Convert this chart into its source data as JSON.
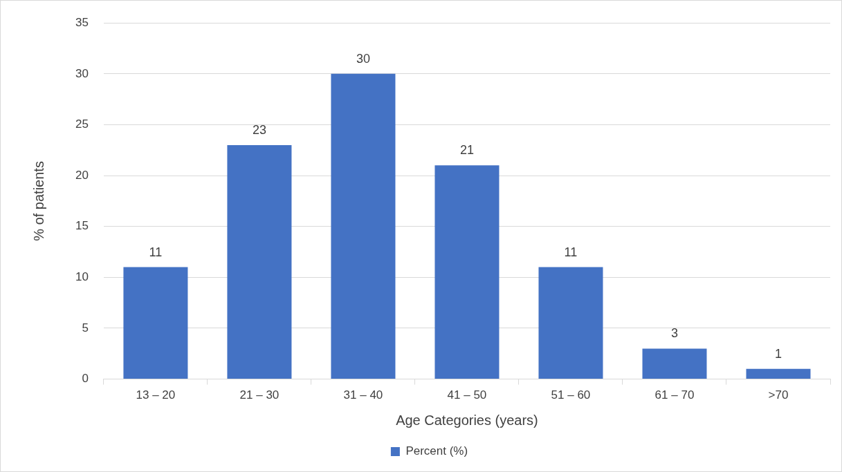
{
  "chart_data": {
    "type": "bar",
    "xlabel": "Age Categories (years)",
    "ylabel": "% of patients",
    "categories": [
      "13 – 20",
      "21 – 30",
      "31 – 40",
      "41 – 50",
      "51 – 60",
      "61 – 70",
      ">70"
    ],
    "series": [
      {
        "name": "Percent (%)",
        "color": "#4472c4",
        "values": [
          11,
          23,
          30,
          21,
          11,
          3,
          1
        ]
      }
    ],
    "ylim": [
      0,
      35
    ],
    "yticks": [
      0,
      5,
      10,
      15,
      20,
      25,
      30,
      35
    ],
    "grid": "y",
    "legend": "bottom",
    "data_labels": true
  }
}
